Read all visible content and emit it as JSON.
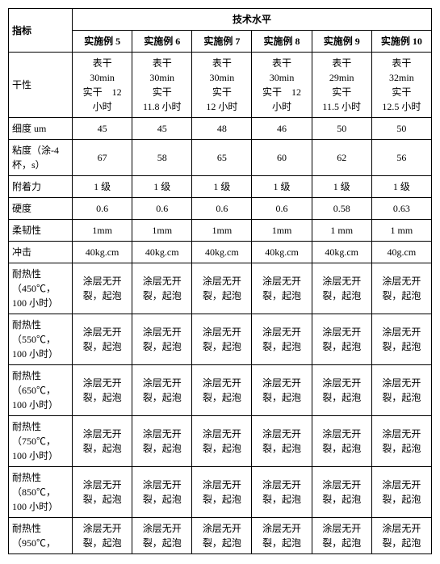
{
  "table": {
    "header": {
      "indicator": "指标",
      "tech_level": "技术水平",
      "cols": [
        "实施例 5",
        "实施例 6",
        "实施例 7",
        "实施例 8",
        "实施例 9",
        "实施例 10"
      ]
    },
    "rows": [
      {
        "label": "干性",
        "cells": [
          "表干\n30min\n实干　12\n小时",
          "表干\n30min\n实干\n11.8 小时",
          "表干\n30min\n实干\n12 小时",
          "表干\n30min\n实干　12\n小时",
          "表干\n29min\n实干\n11.5 小时",
          "表干\n32min\n实干\n12.5 小时"
        ]
      },
      {
        "label": "细度 um",
        "cells": [
          "45",
          "45",
          "48",
          "46",
          "50",
          "50"
        ]
      },
      {
        "label": "粘度（涂-4\n杯，s）",
        "cells": [
          "67",
          "58",
          "65",
          "60",
          "62",
          "56"
        ]
      },
      {
        "label": "附着力",
        "cells": [
          "1 级",
          "1 级",
          "1 级",
          "1 级",
          "1 级",
          "1 级"
        ]
      },
      {
        "label": "硬度",
        "cells": [
          "0.6",
          "0.6",
          "0.6",
          "0.6",
          "0.58",
          "0.63"
        ]
      },
      {
        "label": "柔韧性",
        "cells": [
          "1mm",
          "1mm",
          "1mm",
          "1mm",
          "1 mm",
          "1 mm"
        ]
      },
      {
        "label": "冲击",
        "cells": [
          "40kg.cm",
          "40kg.cm",
          "40kg.cm",
          "40kg.cm",
          "40kg.cm",
          "40g.cm"
        ]
      },
      {
        "label": "耐热性\n（450℃，\n100 小时）",
        "cells": [
          "涂层无开\n裂，起泡",
          "涂层无开\n裂，起泡",
          "涂层无开\n裂，起泡",
          "涂层无开\n裂，起泡",
          "涂层无开\n裂，起泡",
          "涂层无开\n裂，起泡"
        ]
      },
      {
        "label": "耐热性\n（550℃，\n100 小时）",
        "cells": [
          "涂层无开\n裂，起泡",
          "涂层无开\n裂，起泡",
          "涂层无开\n裂，起泡",
          "涂层无开\n裂，起泡",
          "涂层无开\n裂，起泡",
          "涂层无开\n裂，起泡"
        ]
      },
      {
        "label": "耐热性\n（650℃，\n100 小时）",
        "cells": [
          "涂层无开\n裂，起泡",
          "涂层无开\n裂，起泡",
          "涂层无开\n裂，起泡",
          "涂层无开\n裂，起泡",
          "涂层无开\n裂，起泡",
          "涂层无开\n裂，起泡"
        ]
      },
      {
        "label": "耐热性\n（750℃，\n100 小时）",
        "cells": [
          "涂层无开\n裂，起泡",
          "涂层无开\n裂，起泡",
          "涂层无开\n裂，起泡",
          "涂层无开\n裂，起泡",
          "涂层无开\n裂，起泡",
          "涂层无开\n裂，起泡"
        ]
      },
      {
        "label": "耐热性\n（850℃，\n100 小时）",
        "cells": [
          "涂层无开\n裂，起泡",
          "涂层无开\n裂，起泡",
          "涂层无开\n裂，起泡",
          "涂层无开\n裂，起泡",
          "涂层无开\n裂，起泡",
          "涂层无开\n裂，起泡"
        ]
      },
      {
        "label": "耐热性\n（950℃，",
        "cells": [
          "涂层无开\n裂，起泡",
          "涂层无开\n裂，起泡",
          "涂层无开\n裂，起泡",
          "涂层无开\n裂，起泡",
          "涂层无开\n裂，起泡",
          "涂层无开\n裂，起泡"
        ]
      }
    ]
  }
}
